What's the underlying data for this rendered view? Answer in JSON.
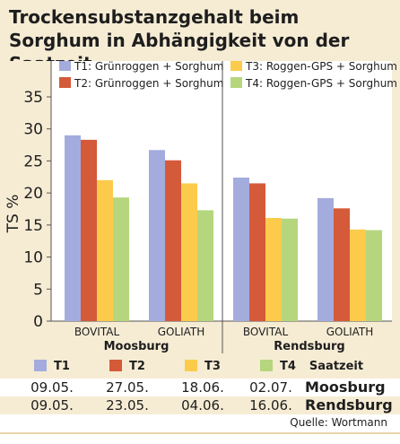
{
  "title": "Trockensubstanzgehalt beim Sorghum in Abhängigkeit von der Saatzeit",
  "chart_data": {
    "type": "bar",
    "ylabel": "TS %",
    "ylim": [
      0,
      35
    ],
    "yticks": [
      0,
      5,
      10,
      15,
      20,
      25,
      30,
      35
    ],
    "grid": false,
    "legend_position": "top",
    "groups": [
      {
        "location": "Moosburg",
        "categories": [
          "BOVITAL",
          "GOLIATH"
        ]
      },
      {
        "location": "Rendsburg",
        "categories": [
          "BOVITAL",
          "GOLIATH"
        ]
      }
    ],
    "series": [
      {
        "name": "T1: Grünroggen + Sorghum",
        "color": "#a3acdc",
        "values": [
          29.0,
          26.7,
          22.4,
          19.2
        ]
      },
      {
        "name": "T2: Grünroggen + Sorghum",
        "color": "#d45a3a",
        "values": [
          28.3,
          25.1,
          21.5,
          17.6
        ]
      },
      {
        "name": "T3: Roggen-GPS + Sorghum",
        "color": "#fccb4c",
        "values": [
          22.0,
          21.5,
          16.1,
          14.3
        ]
      },
      {
        "name": "T4: Roggen-GPS + Sorghum",
        "color": "#b5d67c",
        "values": [
          19.3,
          17.3,
          16.0,
          14.2
        ]
      }
    ]
  },
  "table": {
    "legend": [
      "T1",
      "T2",
      "T3",
      "T4"
    ],
    "header_label": "Saatzeit",
    "rows": [
      {
        "dates": [
          "09.05.",
          "27.05.",
          "18.06.",
          "02.07."
        ],
        "location": "Moosburg"
      },
      {
        "dates": [
          "09.05.",
          "23.05.",
          "04.06.",
          "16.06."
        ],
        "location": "Rendsburg"
      }
    ]
  },
  "source": "Quelle: Wortmann"
}
